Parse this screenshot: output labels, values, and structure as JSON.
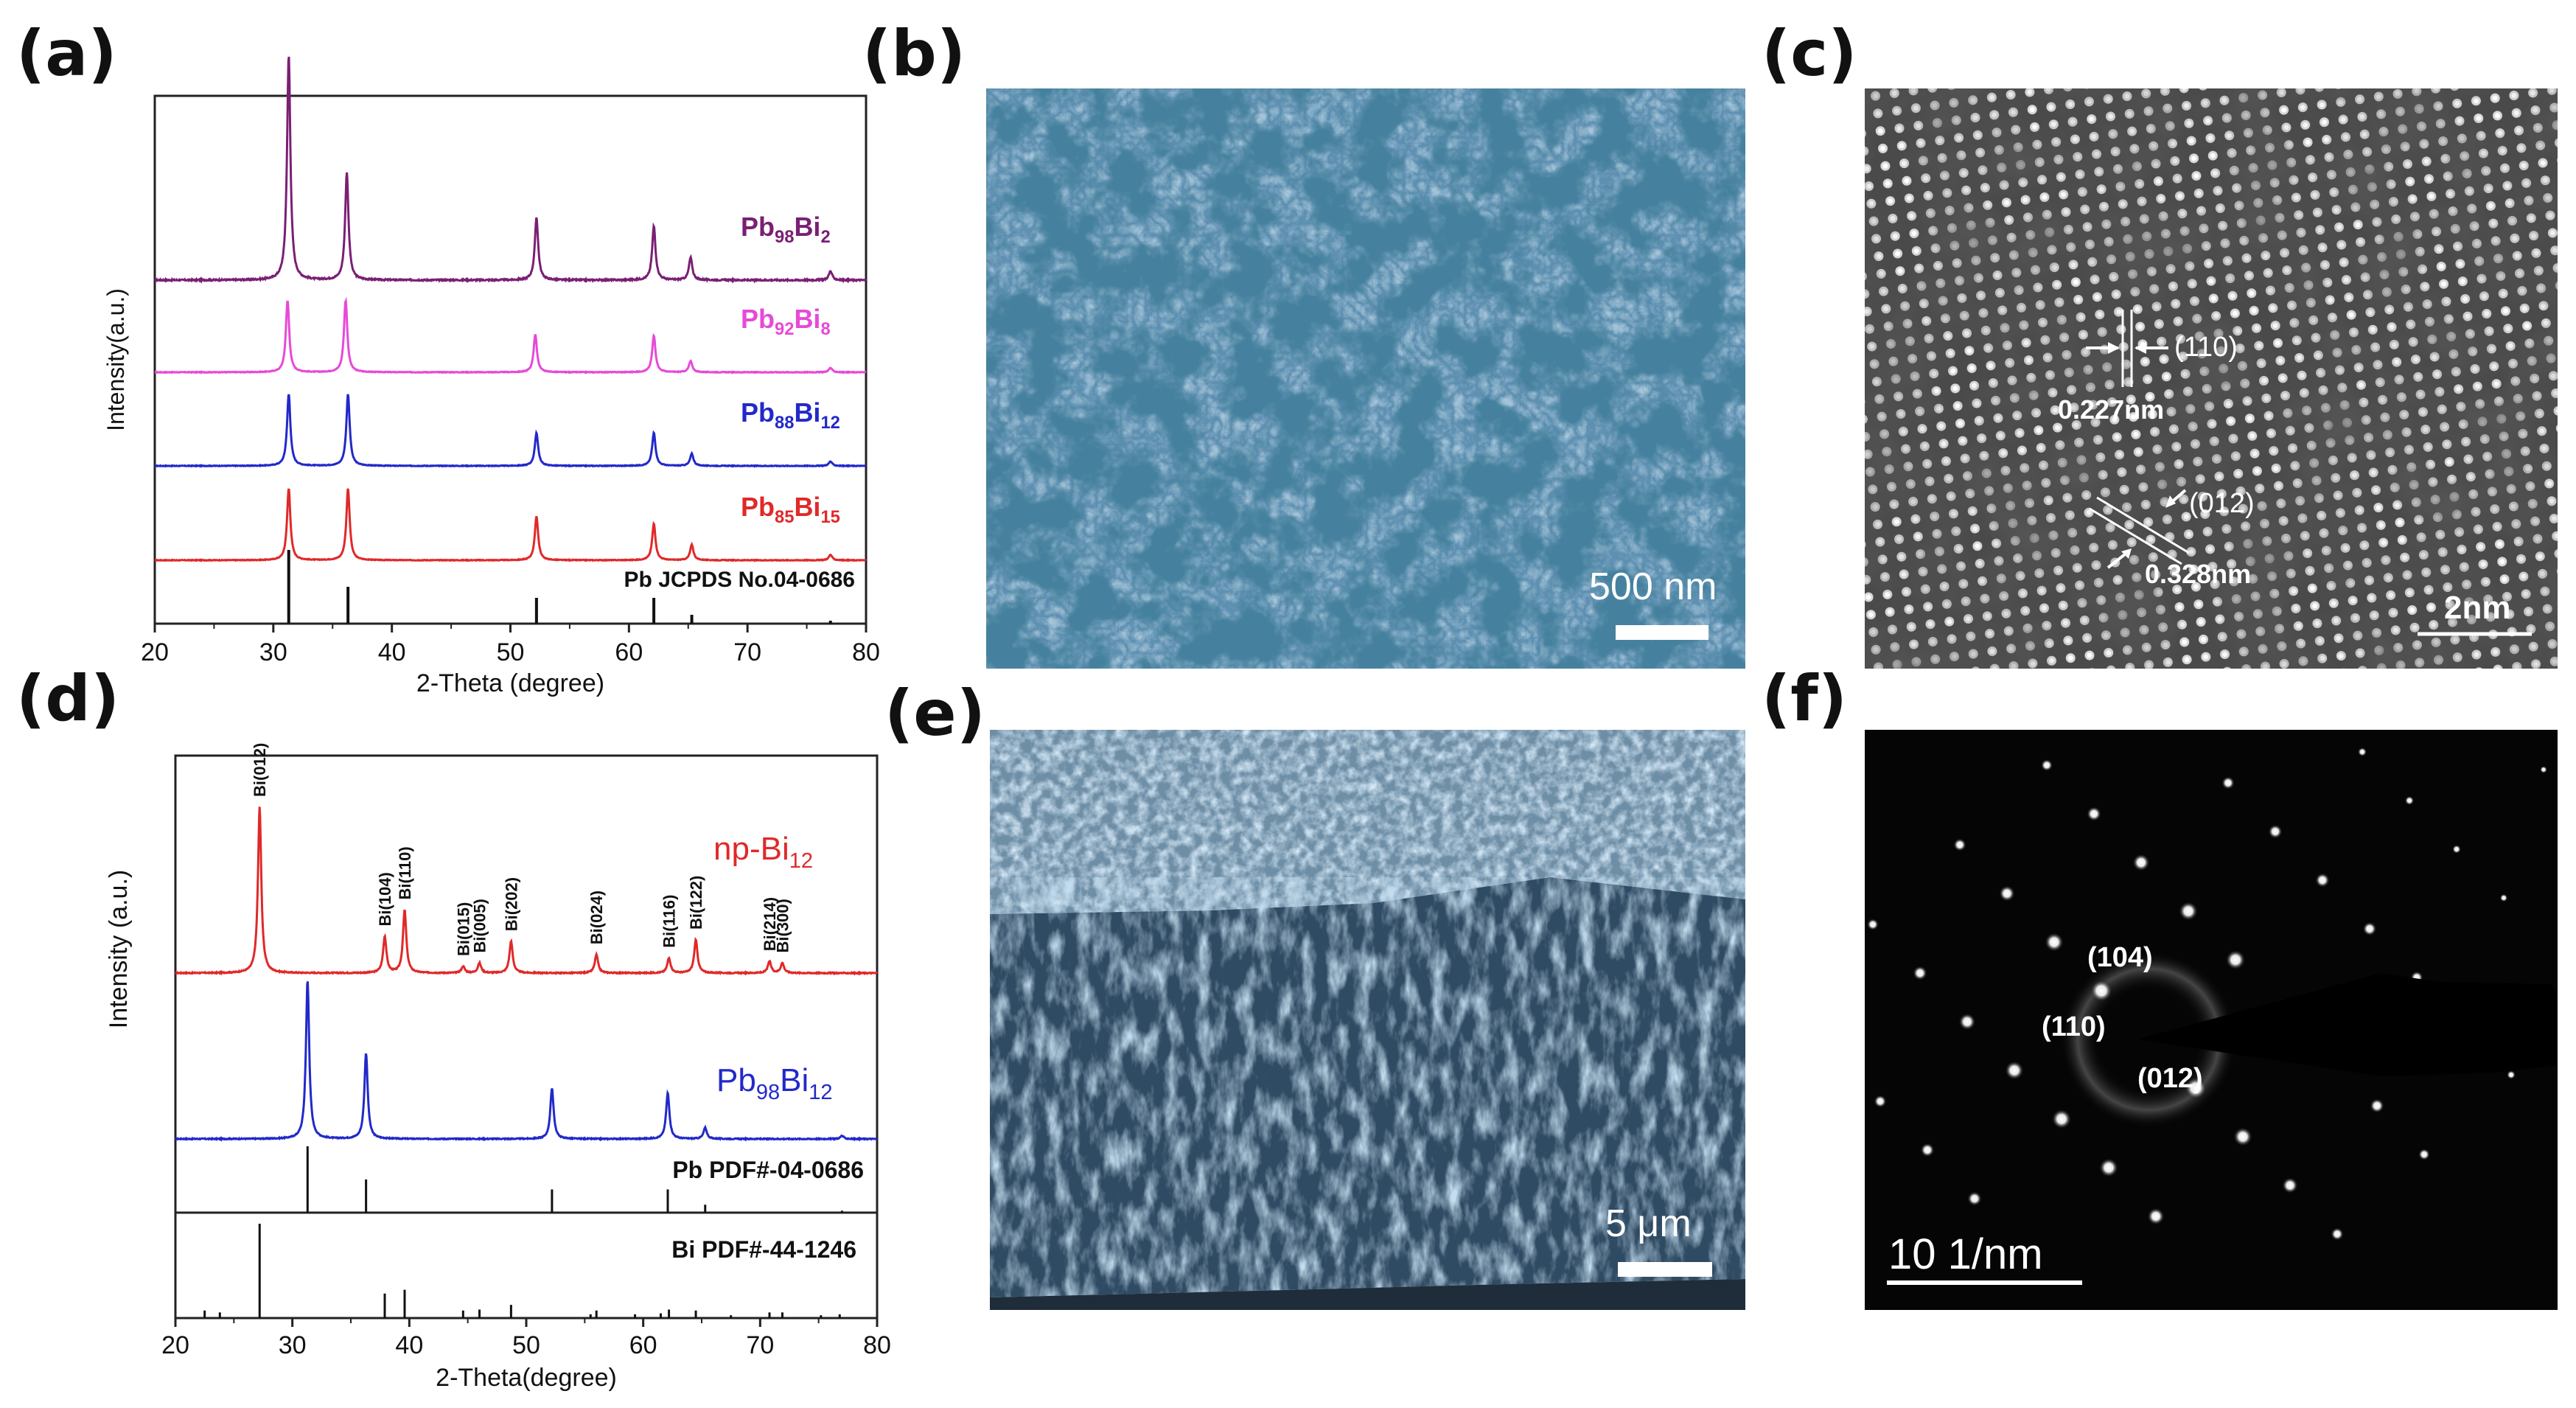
{
  "figure": {
    "panel_letters": {
      "a": "(a)",
      "b": "(b)",
      "c": "(c)",
      "d": "(d)",
      "e": "(e)",
      "f": "(f)"
    }
  },
  "panel_a": {
    "chart_data": {
      "type": "line",
      "xlabel": "2-Theta (degree)",
      "ylabel": "Intensity(a.u.)",
      "xlim": [
        20,
        80
      ],
      "xticks": [
        "20",
        "30",
        "40",
        "50",
        "60",
        "70",
        "80"
      ],
      "series": [
        {
          "base": "Pb",
          "sub1": "98",
          "mid": "Bi",
          "sub2": "2",
          "color": "#7a1f74",
          "peaks": [
            [
              31.3,
              1.0
            ],
            [
              36.2,
              0.48
            ],
            [
              52.2,
              0.28
            ],
            [
              62.1,
              0.24
            ],
            [
              65.2,
              0.1
            ],
            [
              77.0,
              0.04
            ]
          ]
        },
        {
          "base": "Pb",
          "sub1": "92",
          "mid": "Bi",
          "sub2": "8",
          "color": "#e64ad8",
          "peaks": [
            [
              31.2,
              0.65
            ],
            [
              36.1,
              0.65
            ],
            [
              52.1,
              0.34
            ],
            [
              62.1,
              0.33
            ],
            [
              65.2,
              0.1
            ],
            [
              77.0,
              0.04
            ]
          ]
        },
        {
          "base": "Pb",
          "sub1": "88",
          "mid": "Bi",
          "sub2": "12",
          "color": "#2229c9",
          "peaks": [
            [
              31.3,
              0.65
            ],
            [
              36.3,
              0.65
            ],
            [
              52.2,
              0.3
            ],
            [
              62.1,
              0.3
            ],
            [
              65.3,
              0.11
            ],
            [
              77.0,
              0.04
            ]
          ]
        },
        {
          "base": "Pb",
          "sub1": "85",
          "mid": "Bi",
          "sub2": "15",
          "color": "#e02929",
          "peaks": [
            [
              31.3,
              0.65
            ],
            [
              36.3,
              0.65
            ],
            [
              52.2,
              0.4
            ],
            [
              62.1,
              0.33
            ],
            [
              65.3,
              0.14
            ],
            [
              77.0,
              0.05
            ]
          ]
        }
      ],
      "reference": {
        "label": "Pb JCPDS No.04-0686",
        "lines": [
          [
            31.3,
            1.0
          ],
          [
            36.3,
            0.5
          ],
          [
            52.2,
            0.35
          ],
          [
            62.1,
            0.35
          ],
          [
            65.3,
            0.12
          ],
          [
            77.0,
            0.04
          ]
        ]
      }
    }
  },
  "panel_b": {
    "scale_label": "500 nm"
  },
  "panel_c": {
    "annotation_110": "(110)",
    "annotation_012": "(012)",
    "spacing_110": "0.227nm",
    "spacing_012": "0.328nm",
    "scale_label": "2nm"
  },
  "panel_d": {
    "chart_data": {
      "type": "line",
      "xlabel": "2-Theta(degree)",
      "ylabel": "Intensity (a.u.)",
      "xlim": [
        20,
        80
      ],
      "xticks": [
        "20",
        "30",
        "40",
        "50",
        "60",
        "70",
        "80"
      ],
      "series": [
        {
          "base": "np-Bi",
          "sub2": "12",
          "color": "#e02929",
          "peaks": [
            [
              27.2,
              1.0
            ],
            [
              37.9,
              0.22
            ],
            [
              39.6,
              0.38
            ],
            [
              44.6,
              0.04
            ],
            [
              46.0,
              0.06
            ],
            [
              48.7,
              0.19
            ],
            [
              56.0,
              0.11
            ],
            [
              62.2,
              0.09
            ],
            [
              64.5,
              0.2
            ],
            [
              70.8,
              0.07
            ],
            [
              71.9,
              0.06
            ]
          ]
        },
        {
          "base": "Pb",
          "sub1": "98",
          "mid": "Bi",
          "sub2": "12",
          "color": "#2229c9",
          "peaks": [
            [
              31.3,
              1.0
            ],
            [
              36.3,
              0.54
            ],
            [
              52.2,
              0.32
            ],
            [
              62.1,
              0.29
            ],
            [
              65.3,
              0.07
            ],
            [
              77.0,
              0.02
            ]
          ]
        }
      ],
      "peak_labels": [
        {
          "x": 27.2,
          "text": "Bi(012)"
        },
        {
          "x": 37.9,
          "text": "Bi(104)"
        },
        {
          "x": 39.6,
          "text": "Bi(110)"
        },
        {
          "x": 44.6,
          "text": "Bi(015)"
        },
        {
          "x": 46.0,
          "text": "Bi(005)"
        },
        {
          "x": 48.7,
          "text": "Bi(202)"
        },
        {
          "x": 56.0,
          "text": "Bi(024)"
        },
        {
          "x": 62.2,
          "text": "Bi(116)"
        },
        {
          "x": 64.5,
          "text": "Bi(122)"
        },
        {
          "x": 70.8,
          "text": "Bi(214)"
        },
        {
          "x": 71.9,
          "text": "Bi(300)"
        }
      ],
      "reference_pb": {
        "label": "Pb PDF#-04-0686",
        "lines": [
          [
            31.3,
            1.0
          ],
          [
            36.3,
            0.5
          ],
          [
            52.2,
            0.35
          ],
          [
            62.1,
            0.35
          ],
          [
            65.3,
            0.12
          ],
          [
            77.0,
            0.03
          ]
        ]
      },
      "reference_bi": {
        "label": "Bi PDF#-44-1246",
        "lines": [
          [
            22.5,
            0.08
          ],
          [
            23.8,
            0.06
          ],
          [
            27.2,
            1.0
          ],
          [
            37.9,
            0.26
          ],
          [
            39.6,
            0.3
          ],
          [
            44.6,
            0.08
          ],
          [
            46.0,
            0.09
          ],
          [
            48.7,
            0.14
          ],
          [
            55.5,
            0.04
          ],
          [
            56.0,
            0.08
          ],
          [
            59.3,
            0.04
          ],
          [
            61.5,
            0.05
          ],
          [
            62.2,
            0.09
          ],
          [
            64.5,
            0.08
          ],
          [
            67.5,
            0.03
          ],
          [
            70.8,
            0.06
          ],
          [
            71.9,
            0.06
          ],
          [
            75.2,
            0.03
          ],
          [
            76.8,
            0.04
          ]
        ]
      }
    }
  },
  "panel_e": {
    "scale_label": "5 μm"
  },
  "panel_f": {
    "label_104": "(104)",
    "label_110": "(110)",
    "label_012": "(012)",
    "scale_label": "10 1/nm"
  }
}
